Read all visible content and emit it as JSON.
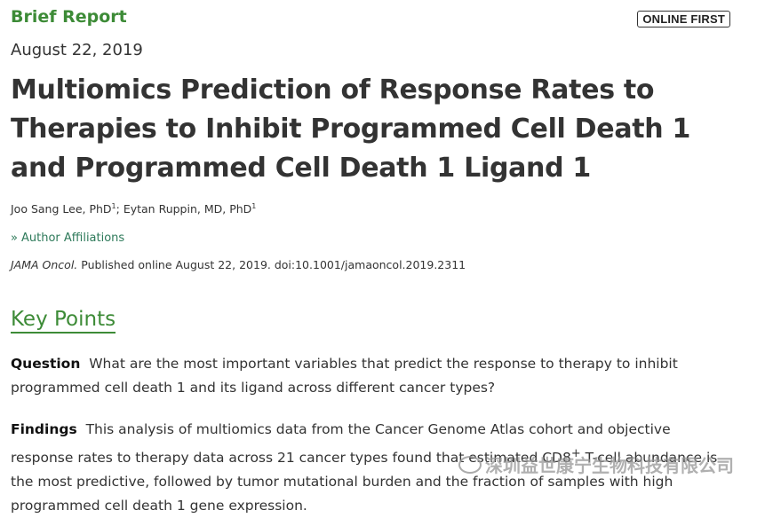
{
  "header": {
    "article_type": "Brief Report",
    "badge": "ONLINE FIRST",
    "date": "August 22, 2019"
  },
  "article": {
    "title": "Multiomics Prediction of Response Rates to Therapies to Inhibit Programmed Cell Death 1 and Programmed Cell Death 1 Ligand 1",
    "authors": [
      {
        "name": "Joo Sang Lee, PhD",
        "sup": "1"
      },
      {
        "name": "Eytan Ruppin, MD, PhD",
        "sup": "1"
      }
    ],
    "author_separator": "; ",
    "affiliations_link": "Author Affiliations",
    "affiliations_icon": "double-chevron-right-icon",
    "citation_journal": "JAMA Oncol.",
    "citation_rest": " Published online August 22, 2019. doi:10.1001/jamaoncol.2019.2311"
  },
  "key_points": {
    "heading": "Key Points",
    "question_label": "Question",
    "question_text": "What are the most important variables that predict the response to therapy to inhibit programmed cell death 1 and its ligand across different cancer types?",
    "findings_label": "Findings",
    "findings_text_1": "This analysis of multiomics data from the Cancer Genome Atlas cohort and objective response rates to therapy data across 21 cancer types found that estimated CD8",
    "findings_sup": "+",
    "findings_text_2": " T-cell abundance is the most predictive, followed by tumor mutational burden and the fraction of samples with high programmed cell death 1 gene expression."
  },
  "watermark": {
    "text": "深圳益世康宁生物科技有限公司",
    "icon": "wechat-icon"
  }
}
